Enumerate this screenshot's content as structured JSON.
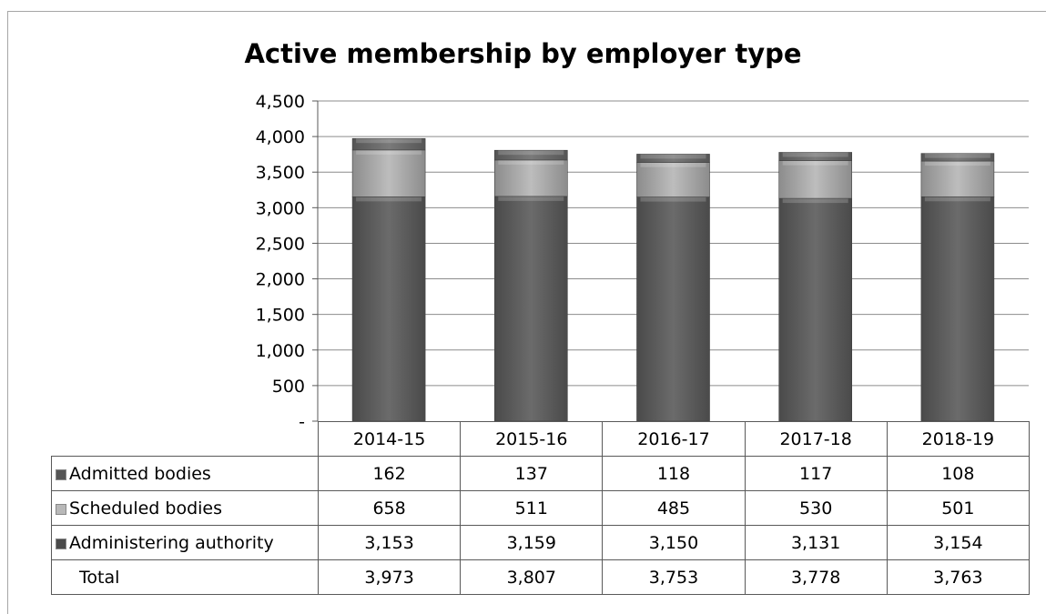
{
  "chart_data": {
    "type": "bar",
    "stacked": true,
    "title": "Active membership by employer type",
    "categories": [
      "2014-15",
      "2015-16",
      "2016-17",
      "2017-18",
      "2018-19"
    ],
    "yticks": [
      "-",
      "500",
      "1,000",
      "1,500",
      "2,000",
      "2,500",
      "3,000",
      "3,500",
      "4,000",
      "4,500"
    ],
    "ylim": [
      0,
      4500
    ],
    "grid": true,
    "series": [
      {
        "name": "Administering authority",
        "values": [
          3153,
          3159,
          3150,
          3131,
          3154
        ],
        "labels": [
          "3,153",
          "3,159",
          "3,150",
          "3,131",
          "3,154"
        ],
        "color": "#595959"
      },
      {
        "name": "Scheduled bodies",
        "values": [
          658,
          511,
          485,
          530,
          501
        ],
        "labels": [
          "658",
          "511",
          "485",
          "530",
          "501"
        ],
        "color": "#a6a6a6"
      },
      {
        "name": "Admitted bodies",
        "values": [
          162,
          137,
          118,
          117,
          108
        ],
        "labels": [
          "162",
          "137",
          "118",
          "117",
          "108"
        ],
        "color": "#707070"
      }
    ],
    "table_rows": [
      {
        "label": "Admitted bodies",
        "series": 2
      },
      {
        "label": "Scheduled bodies",
        "series": 1
      },
      {
        "label": "Administering authority",
        "series": 0
      }
    ],
    "total": {
      "label": "Total",
      "values": [
        "3,973",
        "3,807",
        "3,753",
        "3,778",
        "3,763"
      ]
    }
  }
}
